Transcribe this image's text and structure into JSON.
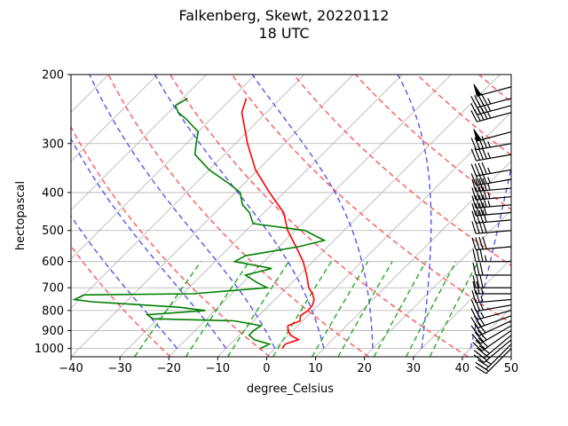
{
  "chart_data": {
    "type": "line",
    "subtype": "skew-t",
    "title_line1": "Falkenberg, Skewt, 20220112",
    "title_line2": "18 UTC",
    "xlabel": "degree_Celsius",
    "ylabel": "hectopascal",
    "xlim": [
      -40,
      50
    ],
    "ylim": [
      1050,
      200
    ],
    "y_scale": "log",
    "x_ticks": [
      "-40",
      "-30",
      "-20",
      "-10",
      "0",
      "10",
      "20",
      "30",
      "40",
      "50"
    ],
    "y_ticks": [
      "200",
      "300",
      "400",
      "500",
      "600",
      "700",
      "800",
      "900",
      "1000"
    ],
    "grid": true,
    "series": [
      {
        "kind": "temperature",
        "color": "#ff0000",
        "points": [
          [
            1000,
            1.5
          ],
          [
            975,
            1.2
          ],
          [
            950,
            3.0
          ],
          [
            925,
            0.5
          ],
          [
            900,
            -1.0
          ],
          [
            875,
            -2.0
          ],
          [
            850,
            -0.5
          ],
          [
            825,
            -1.5
          ],
          [
            800,
            -1.0
          ],
          [
            775,
            -1.2
          ],
          [
            750,
            -2.0
          ],
          [
            725,
            -3.5
          ],
          [
            700,
            -5.5
          ],
          [
            650,
            -8.5
          ],
          [
            600,
            -12.0
          ],
          [
            550,
            -16.5
          ],
          [
            500,
            -21.5
          ],
          [
            450,
            -26.0
          ],
          [
            400,
            -33.0
          ],
          [
            350,
            -40.5
          ],
          [
            300,
            -47.5
          ],
          [
            250,
            -55.0
          ],
          [
            230,
            -57.0
          ]
        ]
      },
      {
        "kind": "dewpoint",
        "color": "#008000",
        "points": [
          [
            1000,
            -3.0
          ],
          [
            975,
            -2.0
          ],
          [
            950,
            -6.0
          ],
          [
            925,
            -8.0
          ],
          [
            900,
            -8.0
          ],
          [
            875,
            -7.5
          ],
          [
            850,
            -14.0
          ],
          [
            840,
            -31.0
          ],
          [
            820,
            -33.0
          ],
          [
            800,
            -22.0
          ],
          [
            785,
            -28.0
          ],
          [
            760,
            -47.0
          ],
          [
            750,
            -51.0
          ],
          [
            730,
            -50.0
          ],
          [
            725,
            -28.0
          ],
          [
            700,
            -14.0
          ],
          [
            680,
            -17.0
          ],
          [
            650,
            -21.0
          ],
          [
            625,
            -17.0
          ],
          [
            600,
            -26.0
          ],
          [
            580,
            -25.0
          ],
          [
            550,
            -16.0
          ],
          [
            530,
            -12.0
          ],
          [
            500,
            -18.0
          ],
          [
            480,
            -30.0
          ],
          [
            450,
            -33.0
          ],
          [
            430,
            -36.0
          ],
          [
            400,
            -39.0
          ],
          [
            380,
            -43.0
          ],
          [
            350,
            -50.0
          ],
          [
            320,
            -56.0
          ],
          [
            300,
            -58.0
          ],
          [
            280,
            -60.0
          ],
          [
            260,
            -65.0
          ],
          [
            250,
            -68.0
          ],
          [
            240,
            -70.0
          ],
          [
            230,
            -69.0
          ]
        ]
      }
    ],
    "dry_adiabats_K": [
      250,
      270,
      290,
      310,
      330,
      350,
      370,
      390,
      410,
      430
    ],
    "moist_adiabats_C": [
      -20,
      -10,
      0,
      10,
      20,
      30,
      40
    ],
    "mixing_ratios_gkg": [
      0.4,
      1,
      2,
      4,
      7,
      10,
      16,
      24,
      32
    ],
    "wind_barbs": [
      {
        "p": 1000,
        "spd": 20,
        "dir": 225
      },
      {
        "p": 975,
        "spd": 25,
        "dir": 225
      },
      {
        "p": 950,
        "spd": 25,
        "dir": 230
      },
      {
        "p": 925,
        "spd": 30,
        "dir": 230
      },
      {
        "p": 900,
        "spd": 30,
        "dir": 235
      },
      {
        "p": 875,
        "spd": 30,
        "dir": 240
      },
      {
        "p": 850,
        "spd": 30,
        "dir": 245
      },
      {
        "p": 825,
        "spd": 30,
        "dir": 250
      },
      {
        "p": 800,
        "spd": 25,
        "dir": 255
      },
      {
        "p": 775,
        "spd": 25,
        "dir": 260
      },
      {
        "p": 750,
        "spd": 25,
        "dir": 265
      },
      {
        "p": 725,
        "spd": 25,
        "dir": 270
      },
      {
        "p": 700,
        "spd": 30,
        "dir": 270
      },
      {
        "p": 650,
        "spd": 30,
        "dir": 270
      },
      {
        "p": 600,
        "spd": 35,
        "dir": 270
      },
      {
        "p": 550,
        "spd": 40,
        "dir": 265
      },
      {
        "p": 500,
        "spd": 40,
        "dir": 265
      },
      {
        "p": 470,
        "spd": 40,
        "dir": 265
      },
      {
        "p": 450,
        "spd": 40,
        "dir": 265
      },
      {
        "p": 430,
        "spd": 45,
        "dir": 265
      },
      {
        "p": 410,
        "spd": 45,
        "dir": 265
      },
      {
        "p": 390,
        "spd": 45,
        "dir": 265
      },
      {
        "p": 370,
        "spd": 45,
        "dir": 260
      },
      {
        "p": 350,
        "spd": 45,
        "dir": 260
      },
      {
        "p": 320,
        "spd": 45,
        "dir": 260
      },
      {
        "p": 300,
        "spd": 45,
        "dir": 260
      },
      {
        "p": 280,
        "spd": 50,
        "dir": 255
      },
      {
        "p": 250,
        "spd": 45,
        "dir": 255
      },
      {
        "p": 240,
        "spd": 45,
        "dir": 255
      },
      {
        "p": 230,
        "spd": 45,
        "dir": 255
      },
      {
        "p": 215,
        "spd": 50,
        "dir": 255
      }
    ],
    "colors": {
      "grid": "#b0b0b0",
      "dry_adiabat": "#ff5555",
      "moist_adiabat": "#5555ee",
      "mixing_ratio": "#22aa22",
      "temperature": "#ff0000",
      "dewpoint": "#008000",
      "barb": "#000000"
    }
  }
}
